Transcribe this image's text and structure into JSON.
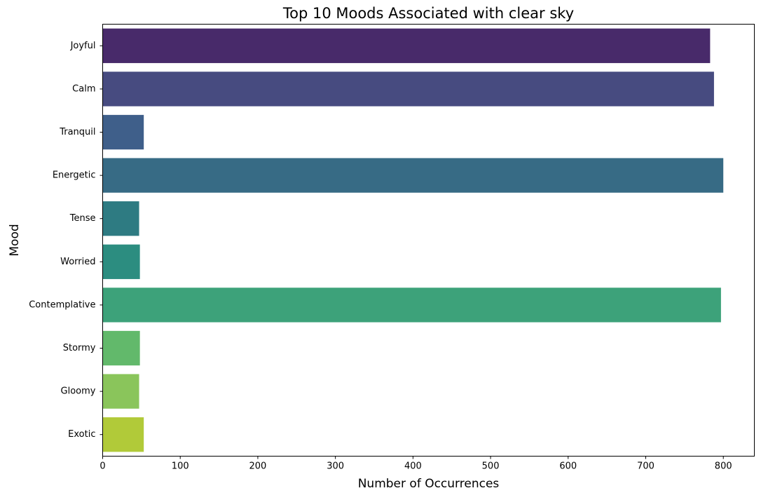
{
  "chart_data": {
    "type": "bar",
    "orientation": "horizontal",
    "title": "Top 10 Moods Associated with clear sky",
    "xlabel": "Number of Occurrences",
    "ylabel": "Mood",
    "categories": [
      "Joyful",
      "Calm",
      "Tranquil",
      "Energetic",
      "Tense",
      "Worried",
      "Contemplative",
      "Stormy",
      "Gloomy",
      "Exotic"
    ],
    "values": [
      783,
      788,
      53,
      800,
      47,
      48,
      797,
      48,
      47,
      53
    ],
    "xlim": [
      0,
      840
    ],
    "xticks": [
      0,
      100,
      200,
      300,
      400,
      500,
      600,
      700,
      800
    ],
    "grid": false,
    "legend": "none",
    "colors": [
      "#482a6a",
      "#474b80",
      "#3f5f8a",
      "#376b85",
      "#2e7b82",
      "#2c8d80",
      "#3da27a",
      "#62b96b",
      "#8ac55b",
      "#b1ca39"
    ]
  }
}
